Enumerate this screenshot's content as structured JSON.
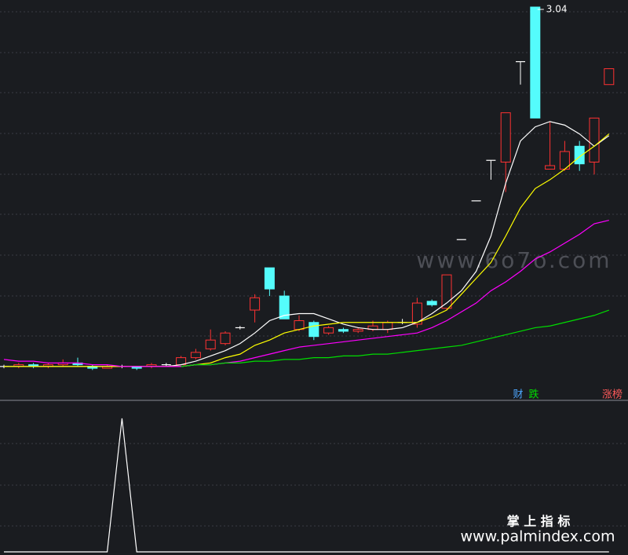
{
  "chart_data": [
    {
      "type": "candlestick",
      "categories": [
        null,
        null,
        null,
        null,
        null,
        null,
        null,
        null,
        null,
        null,
        null,
        null,
        null,
        null,
        null,
        null,
        null,
        null,
        null,
        null,
        null,
        null,
        null,
        null,
        null,
        null,
        null,
        null,
        null,
        null,
        null,
        null,
        null,
        null,
        null,
        null,
        null,
        null,
        null,
        null,
        null,
        null
      ],
      "open": [
        1.0,
        1.0,
        1.01,
        1.0,
        1.01,
        1.02,
        1.0,
        0.99,
        1.0,
        1.0,
        1.0,
        1.01,
        1.01,
        1.05,
        1.1,
        1.13,
        1.22,
        1.32,
        1.56,
        1.4,
        1.21,
        1.25,
        1.19,
        1.21,
        1.2,
        1.21,
        1.21,
        1.25,
        1.24,
        1.37,
        1.33,
        1.72,
        1.94,
        2.17,
        2.16,
        2.73,
        3.04,
        2.12,
        2.12,
        2.25,
        2.16,
        2.6
      ],
      "high": [
        1.01,
        1.02,
        1.02,
        1.02,
        1.04,
        1.05,
        1.01,
        1.01,
        1.01,
        1.0,
        1.02,
        1.02,
        1.06,
        1.1,
        1.21,
        1.2,
        1.23,
        1.41,
        1.56,
        1.43,
        1.29,
        1.26,
        1.23,
        1.22,
        1.22,
        1.26,
        1.26,
        1.27,
        1.39,
        1.38,
        1.52,
        1.72,
        1.94,
        2.17,
        2.44,
        2.73,
        3.04,
        2.39,
        2.28,
        2.28,
        2.41,
        2.69
      ],
      "low": [
        0.99,
        0.99,
        0.99,
        0.99,
        1.0,
        1.0,
        0.98,
        0.99,
        0.99,
        0.98,
        0.99,
        1.0,
        1.01,
        1.04,
        1.09,
        1.12,
        1.21,
        1.25,
        1.4,
        1.27,
        1.2,
        1.15,
        1.18,
        1.19,
        1.19,
        1.2,
        1.19,
        1.24,
        1.22,
        1.34,
        1.32,
        1.72,
        1.94,
        2.06,
        1.99,
        2.6,
        2.41,
        2.12,
        2.11,
        2.11,
        2.09,
        2.6
      ],
      "close": [
        1.0,
        1.01,
        1.0,
        1.01,
        1.02,
        1.01,
        0.99,
        1.0,
        1.0,
        0.99,
        1.01,
        1.01,
        1.05,
        1.08,
        1.15,
        1.19,
        1.22,
        1.39,
        1.44,
        1.27,
        1.26,
        1.17,
        1.22,
        1.2,
        1.21,
        1.23,
        1.25,
        1.25,
        1.36,
        1.35,
        1.52,
        1.72,
        1.94,
        2.17,
        2.44,
        2.73,
        2.41,
        2.14,
        2.22,
        2.15,
        2.41,
        2.69
      ],
      "up_color": "#ff3232",
      "down_color": "#54fcfc",
      "flat_color": "#ffffff",
      "ylim": [
        0.83,
        3.08
      ],
      "high_label_index": 36,
      "series": [
        {
          "color": "#ffffff",
          "values": [
            1.0,
            1.0,
            1.0,
            1.0,
            1.0,
            1.0,
            1.0,
            1.0,
            1.0,
            1.0,
            1.0,
            1.0,
            1.01,
            1.03,
            1.06,
            1.09,
            1.13,
            1.19,
            1.26,
            1.29,
            1.3,
            1.3,
            1.27,
            1.24,
            1.22,
            1.21,
            1.21,
            1.22,
            1.25,
            1.3,
            1.36,
            1.43,
            1.54,
            1.74,
            2.04,
            2.28,
            2.36,
            2.39,
            2.37,
            2.32,
            2.25,
            2.31
          ]
        },
        {
          "color": "#ffff00",
          "values": [
            1.0,
            1.0,
            1.0,
            1.0,
            1.0,
            1.0,
            1.0,
            1.0,
            1.0,
            1.0,
            1.0,
            1.0,
            1.0,
            1.01,
            1.02,
            1.05,
            1.07,
            1.12,
            1.15,
            1.19,
            1.21,
            1.23,
            1.24,
            1.25,
            1.25,
            1.25,
            1.25,
            1.25,
            1.25,
            1.28,
            1.32,
            1.41,
            1.5,
            1.59,
            1.74,
            1.9,
            2.01,
            2.06,
            2.12,
            2.19,
            2.25,
            2.32
          ]
        },
        {
          "color": "#ff00ff",
          "values": [
            1.04,
            1.03,
            1.03,
            1.02,
            1.02,
            1.02,
            1.01,
            1.01,
            1.0,
            1.0,
            1.0,
            1.0,
            1.0,
            1.01,
            1.01,
            1.02,
            1.03,
            1.05,
            1.07,
            1.09,
            1.11,
            1.12,
            1.13,
            1.14,
            1.15,
            1.16,
            1.17,
            1.18,
            1.19,
            1.22,
            1.26,
            1.31,
            1.36,
            1.43,
            1.48,
            1.54,
            1.61,
            1.65,
            1.7,
            1.75,
            1.81,
            1.83
          ]
        },
        {
          "color": "#00dd00",
          "values": [
            null,
            null,
            null,
            null,
            null,
            null,
            null,
            null,
            null,
            null,
            null,
            null,
            1.0,
            1.01,
            1.01,
            1.02,
            1.02,
            1.03,
            1.03,
            1.04,
            1.04,
            1.05,
            1.05,
            1.06,
            1.06,
            1.07,
            1.07,
            1.08,
            1.09,
            1.1,
            1.11,
            1.12,
            1.14,
            1.16,
            1.18,
            1.2,
            1.22,
            1.23,
            1.25,
            1.27,
            1.29,
            1.32
          ]
        }
      ],
      "markers": [
        {
          "text": "财",
          "color": "#4da6ff"
        },
        {
          "text": "跌",
          "color": "#00dd00"
        },
        {
          "text": "涨榜",
          "color": "#ff5a5a"
        }
      ]
    },
    {
      "type": "line",
      "categories": [
        null,
        null,
        null,
        null,
        null,
        null,
        null,
        null,
        null,
        null,
        null,
        null,
        null,
        null,
        null,
        null,
        null,
        null,
        null,
        null,
        null,
        null,
        null,
        null,
        null,
        null,
        null,
        null,
        null,
        null,
        null,
        null,
        null,
        null,
        null,
        null,
        null,
        null,
        null,
        null,
        null,
        null
      ],
      "ylim": [
        0,
        1.07
      ],
      "series": [
        {
          "color": "#ffffff",
          "values": [
            0,
            0,
            0,
            0,
            0,
            0,
            0,
            0,
            1,
            0,
            0,
            0,
            0,
            0,
            0,
            0,
            0,
            0,
            0,
            0,
            0,
            0,
            0,
            0,
            0,
            0,
            0,
            0,
            0,
            0,
            0,
            0,
            0,
            0,
            0,
            0,
            0,
            0,
            0,
            0,
            0,
            0
          ]
        }
      ]
    }
  ],
  "watermarks": {
    "site": "www.6o7o.com",
    "brand": "掌 上 指 标",
    "url": "www.palmindex.com"
  }
}
